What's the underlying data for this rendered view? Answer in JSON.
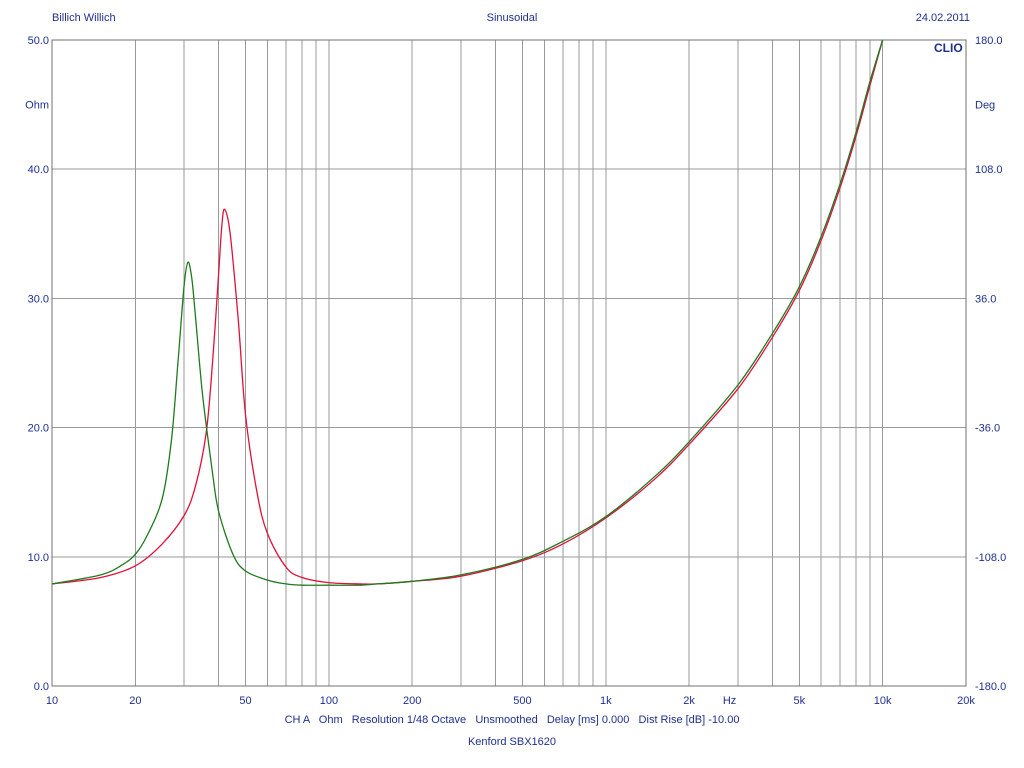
{
  "header": {
    "left": "Billich Willich",
    "center": "Sinusoidal",
    "right": "24.02.2011"
  },
  "brand": "CLIO",
  "footer": {
    "line1": "CH A   Ohm   Resolution 1/48 Octave   Unsmoothed   Delay [ms] 0.000   Dist Rise [dB] -10.00",
    "line2": "Kenford SBX1620"
  },
  "chart_data": {
    "type": "line",
    "xscale": "log",
    "xlim": [
      10,
      20000
    ],
    "ylim": [
      0,
      50
    ],
    "y2lim": [
      -180,
      180
    ],
    "ylabel": "Ohm",
    "y2label": "Deg",
    "xunit": "Hz",
    "grid": true,
    "x_ticks": [
      {
        "value": 10,
        "label": "10"
      },
      {
        "value": 20,
        "label": "20"
      },
      {
        "value": 50,
        "label": "50"
      },
      {
        "value": 100,
        "label": "100"
      },
      {
        "value": 200,
        "label": "200"
      },
      {
        "value": 500,
        "label": "500"
      },
      {
        "value": 1000,
        "label": "1k"
      },
      {
        "value": 2000,
        "label": "2k"
      },
      {
        "value": 5000,
        "label": "5k"
      },
      {
        "value": 10000,
        "label": "10k"
      },
      {
        "value": 20000,
        "label": "20k"
      }
    ],
    "y_ticks": [
      "0.0",
      "10.0",
      "20.0",
      "30.0",
      "40.0",
      "50.0"
    ],
    "y2_ticks": [
      "-180.0",
      "-108.0",
      "-36.0",
      "36.0",
      "108.0",
      "180.0"
    ],
    "series": [
      {
        "color": "#e0103a",
        "x": [
          10,
          15,
          20,
          25,
          30,
          33,
          36,
          38,
          40,
          41,
          42,
          44,
          47,
          50,
          55,
          60,
          70,
          80,
          100,
          130,
          150,
          200,
          300,
          500,
          700,
          1000,
          1500,
          2000,
          3000,
          4000,
          5000,
          6000,
          7000,
          8000,
          9000,
          10000
        ],
        "y": [
          7.9,
          8.4,
          9.3,
          11.0,
          13.2,
          15.5,
          19.5,
          25.0,
          32.0,
          35.5,
          36.9,
          35.0,
          28.5,
          21.0,
          15.0,
          11.8,
          9.2,
          8.4,
          8.0,
          7.9,
          7.9,
          8.1,
          8.5,
          9.7,
          11.0,
          13.0,
          16.0,
          18.7,
          23.0,
          27.0,
          30.6,
          34.5,
          38.5,
          42.5,
          46.5,
          50.0
        ]
      },
      {
        "color": "#1e7a1e",
        "x": [
          10,
          15,
          18,
          20,
          22,
          25,
          27,
          28.5,
          30,
          31,
          32,
          33,
          35,
          38,
          40,
          45,
          50,
          60,
          70,
          80,
          100,
          130,
          150,
          200,
          300,
          500,
          700,
          1000,
          1500,
          2000,
          3000,
          4000,
          5000,
          6000,
          7000,
          8000,
          9000,
          10000
        ],
        "y": [
          7.9,
          8.6,
          9.4,
          10.2,
          11.6,
          14.5,
          19.0,
          25.0,
          31.0,
          32.8,
          31.5,
          28.5,
          22.5,
          16.5,
          13.5,
          10.2,
          8.9,
          8.2,
          7.9,
          7.8,
          7.8,
          7.8,
          7.9,
          8.1,
          8.6,
          9.8,
          11.2,
          13.1,
          16.2,
          18.9,
          23.3,
          27.3,
          30.9,
          34.8,
          38.8,
          42.8,
          46.8,
          50.0
        ]
      }
    ]
  }
}
